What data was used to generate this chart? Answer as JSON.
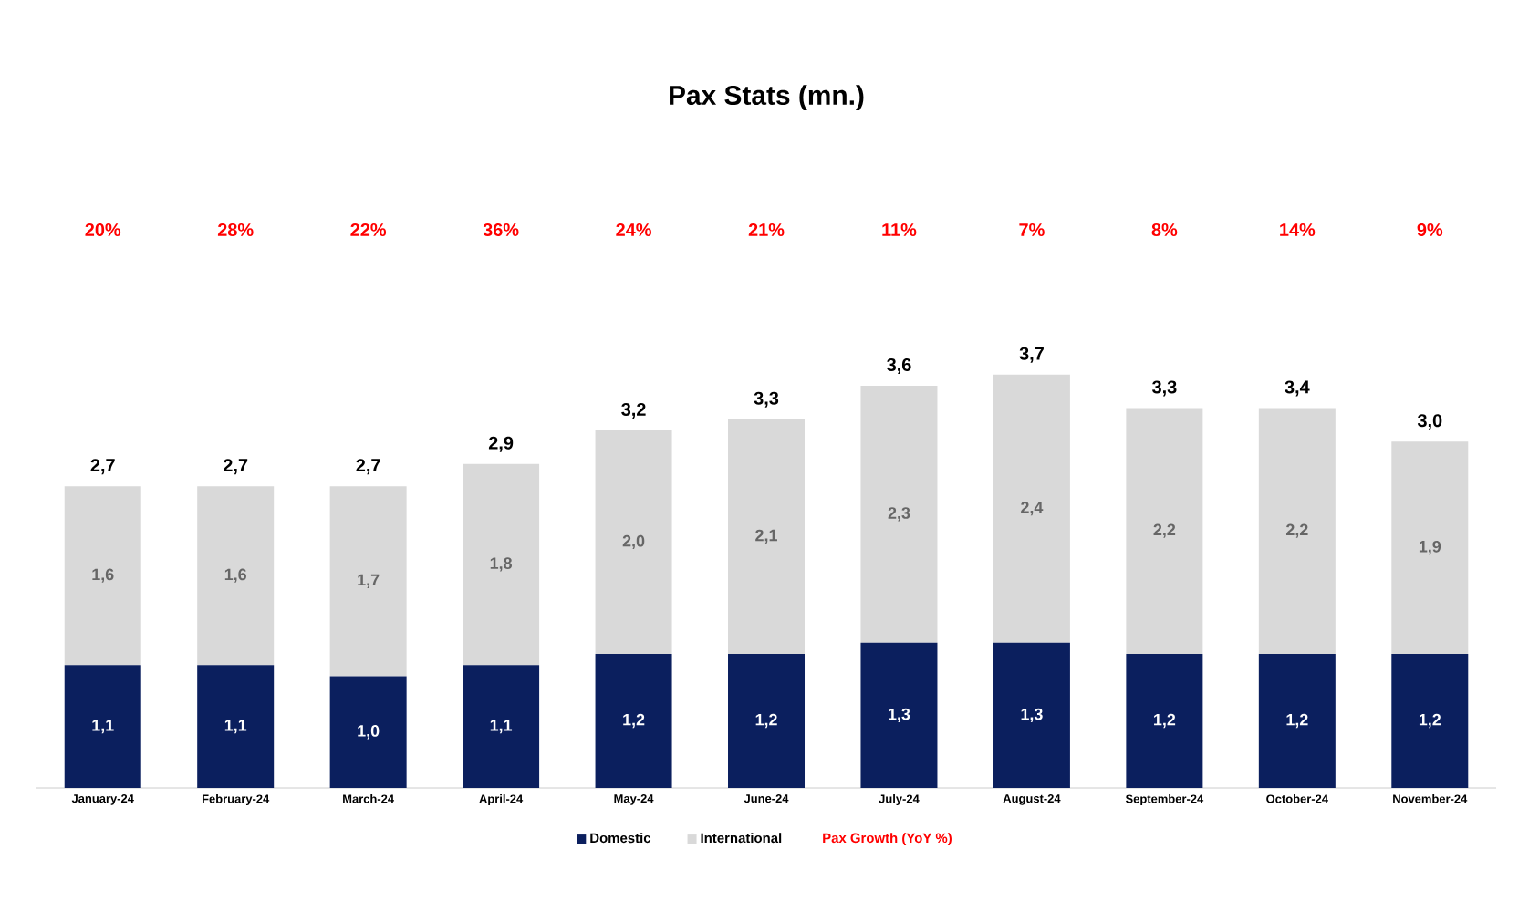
{
  "chart_data": {
    "type": "bar",
    "title": "Pax Stats (mn.)",
    "stacked": true,
    "categories": [
      "January-24",
      "February-24",
      "March-24",
      "April-24",
      "May-24",
      "June-24",
      "July-24",
      "August-24",
      "September-24",
      "October-24",
      "November-24"
    ],
    "series": [
      {
        "name": "Domestic",
        "color": "#0b1f5e",
        "values": [
          1.1,
          1.1,
          1.0,
          1.1,
          1.2,
          1.2,
          1.3,
          1.3,
          1.2,
          1.2,
          1.2
        ],
        "value_labels": [
          "1,1",
          "1,1",
          "1,0",
          "1,1",
          "1,2",
          "1,2",
          "1,3",
          "1,3",
          "1,2",
          "1,2",
          "1,2"
        ]
      },
      {
        "name": "International",
        "color": "#d9d9d9",
        "values": [
          1.6,
          1.6,
          1.7,
          1.8,
          2.0,
          2.1,
          2.3,
          2.4,
          2.2,
          2.2,
          1.9
        ],
        "value_labels": [
          "1,6",
          "1,6",
          "1,7",
          "1,8",
          "2,0",
          "2,1",
          "2,3",
          "2,4",
          "2,2",
          "2,2",
          "1,9"
        ]
      }
    ],
    "annotations": [
      "20%",
      "28%",
      "22%",
      "36%",
      "24%",
      "21%",
      "11%",
      "7%",
      "8%",
      "14%",
      "9%",
      "Pax Growth (YoY %)"
    ],
    "totals": [
      "2,7",
      "2,7",
      "2,7",
      "2,9",
      "3,2",
      "3,3",
      "3,6",
      "3,7",
      "3,3",
      "3,4",
      "3,0"
    ],
    "tick_labels": "x",
    "legend": "bottom"
  }
}
